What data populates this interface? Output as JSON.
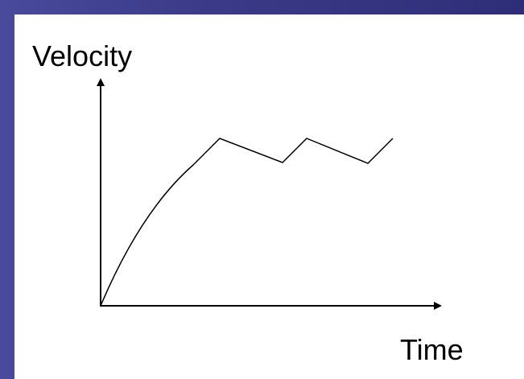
{
  "y_axis_label": "Velocity",
  "x_axis_label": "Time"
}
